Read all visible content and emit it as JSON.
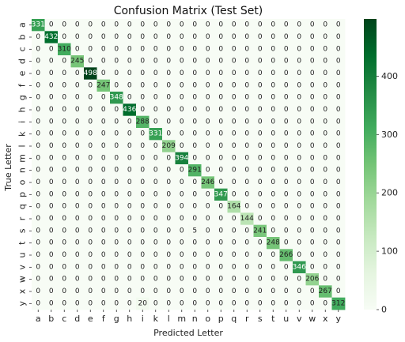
{
  "chart_data": {
    "type": "heatmap",
    "title": "Confusion Matrix (Test Set)",
    "xlabel": "Predicted Letter",
    "ylabel": "True Letter",
    "x_categories": [
      "a",
      "b",
      "c",
      "d",
      "e",
      "f",
      "g",
      "h",
      "i",
      "k",
      "l",
      "m",
      "n",
      "o",
      "p",
      "q",
      "r",
      "s",
      "t",
      "u",
      "v",
      "w",
      "x",
      "y"
    ],
    "y_categories": [
      "a",
      "b",
      "c",
      "d",
      "e",
      "f",
      "g",
      "h",
      "i",
      "k",
      "l",
      "m",
      "n",
      "o",
      "p",
      "q",
      "r",
      "s",
      "t",
      "u",
      "v",
      "w",
      "x",
      "y"
    ],
    "diagonal": [
      331,
      432,
      310,
      245,
      498,
      247,
      348,
      436,
      288,
      331,
      209,
      394,
      291,
      246,
      347,
      164,
      144,
      241,
      248,
      266,
      346,
      206,
      267,
      312
    ],
    "off_diagonal": [
      {
        "row": 17,
        "col": 12,
        "value": 5
      },
      {
        "row": 23,
        "col": 8,
        "value": 20
      }
    ],
    "color_range": [
      0,
      498
    ],
    "colorbar_ticks": [
      "0",
      "100",
      "200",
      "300",
      "400"
    ],
    "colorbar_tick_values": [
      0,
      100,
      200,
      300,
      400
    ],
    "colormap": [
      "#f7fcf5",
      "#e5f5e0",
      "#c7e9c0",
      "#a1d99b",
      "#74c476",
      "#41ab5d",
      "#238b45",
      "#006d2c",
      "#00441b"
    ]
  }
}
